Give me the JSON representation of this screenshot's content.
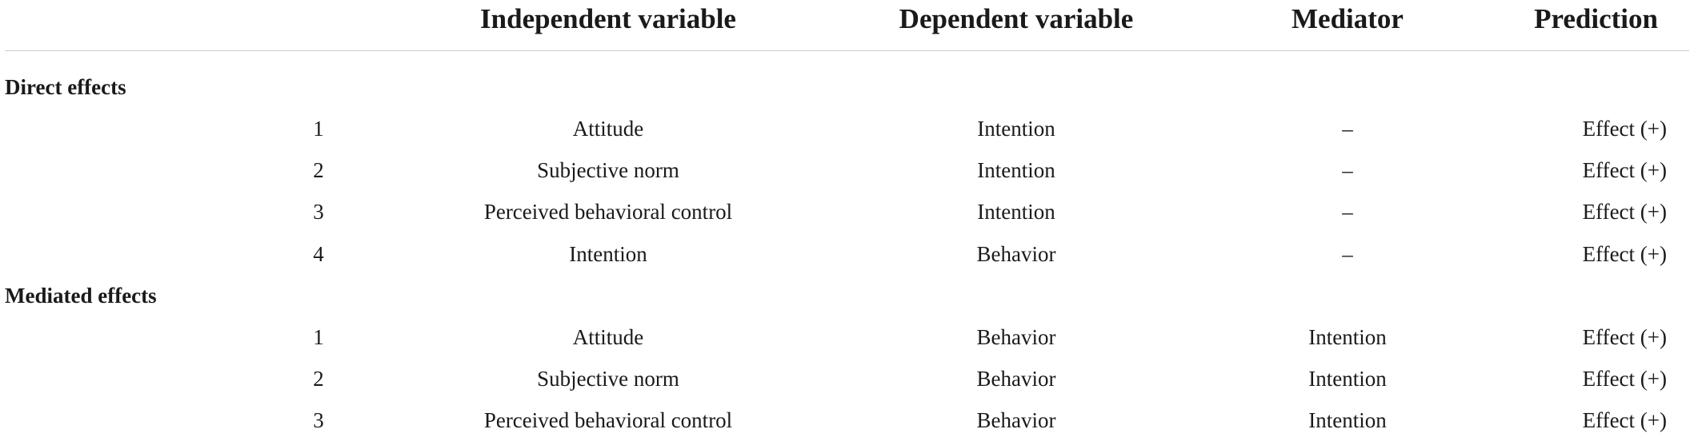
{
  "headers": {
    "hypothesis": "",
    "independent": "Independent variable",
    "dependent": "Dependent variable",
    "mediator": "Mediator",
    "prediction": "Prediction"
  },
  "sections": [
    {
      "title": "Direct effects",
      "rows": [
        {
          "no": "1",
          "independent": "Attitude",
          "dependent": "Intention",
          "mediator": "–",
          "prediction": "Effect (+)"
        },
        {
          "no": "2",
          "independent": "Subjective norm",
          "dependent": "Intention",
          "mediator": "–",
          "prediction": "Effect (+)"
        },
        {
          "no": "3",
          "independent": "Perceived behavioral control",
          "dependent": "Intention",
          "mediator": "–",
          "prediction": "Effect (+)"
        },
        {
          "no": "4",
          "independent": "Intention",
          "dependent": "Behavior",
          "mediator": "–",
          "prediction": "Effect (+)"
        }
      ]
    },
    {
      "title": "Mediated effects",
      "rows": [
        {
          "no": "1",
          "independent": "Attitude",
          "dependent": "Behavior",
          "mediator": "Intention",
          "prediction": "Effect (+)"
        },
        {
          "no": "2",
          "independent": "Subjective norm",
          "dependent": "Behavior",
          "mediator": "Intention",
          "prediction": "Effect (+)"
        },
        {
          "no": "3",
          "independent": "Perceived behavioral control",
          "dependent": "Behavior",
          "mediator": "Intention",
          "prediction": "Effect (+)"
        }
      ]
    }
  ]
}
